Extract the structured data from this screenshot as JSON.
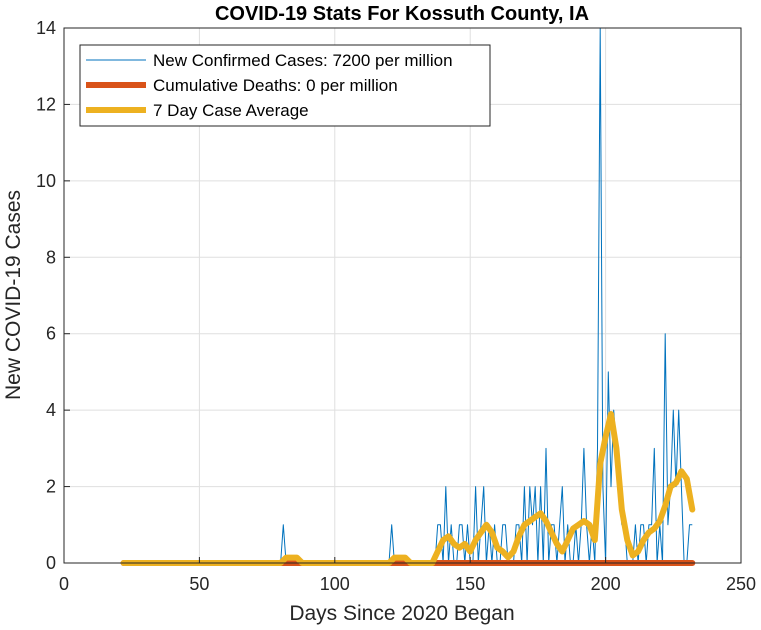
{
  "chart_data": {
    "type": "line",
    "title": "COVID-19 Stats For Kossuth County, IA",
    "xlabel": "Days Since 2020 Began",
    "ylabel": "New COVID-19 Cases",
    "xlim": [
      0,
      250
    ],
    "ylim": [
      0,
      14
    ],
    "xticks": [
      0,
      50,
      100,
      150,
      200,
      250
    ],
    "yticks": [
      0,
      2,
      4,
      6,
      8,
      10,
      12,
      14
    ],
    "grid": true,
    "legend_position": "top-left",
    "series": [
      {
        "name": "New Confirmed Cases: 7200 per million",
        "color": "#0072BD",
        "line_width": "thin",
        "x": [
          22,
          80,
          81,
          82,
          83,
          120,
          121,
          122,
          137,
          138,
          139,
          140,
          141,
          142,
          143,
          144,
          145,
          146,
          147,
          148,
          149,
          150,
          151,
          152,
          153,
          154,
          155,
          156,
          157,
          158,
          159,
          160,
          161,
          162,
          163,
          164,
          165,
          166,
          167,
          168,
          169,
          170,
          171,
          172,
          173,
          174,
          175,
          176,
          177,
          178,
          179,
          180,
          181,
          182,
          183,
          184,
          185,
          186,
          187,
          188,
          189,
          190,
          191,
          192,
          193,
          194,
          195,
          196,
          197,
          198,
          199,
          200,
          201,
          202,
          203,
          204,
          205,
          206,
          207,
          208,
          209,
          210,
          211,
          212,
          213,
          214,
          215,
          216,
          217,
          218,
          219,
          220,
          221,
          222,
          223,
          224,
          225,
          226,
          227,
          228,
          229,
          230,
          231,
          232
        ],
        "y": [
          0,
          0,
          1,
          0,
          0,
          0,
          1,
          0,
          0,
          1,
          1,
          0,
          2,
          0,
          1,
          0,
          0,
          1,
          1,
          0,
          1,
          0,
          0,
          2,
          0,
          1,
          2,
          0,
          1,
          0,
          1,
          0,
          0,
          1,
          1,
          0,
          0,
          0,
          1,
          1,
          0,
          2,
          0,
          2,
          1,
          2,
          0,
          2,
          0,
          3,
          0,
          1,
          1,
          0,
          1,
          2,
          0,
          1,
          0,
          0,
          1,
          0,
          1,
          3,
          1,
          0,
          1,
          0,
          3,
          14,
          2,
          0,
          5,
          2,
          4,
          3,
          2,
          1,
          1,
          0,
          0,
          0,
          1,
          0,
          1,
          1,
          0,
          1,
          1,
          3,
          0,
          1,
          0,
          6,
          1,
          2,
          4,
          2,
          4,
          2,
          0,
          0,
          1,
          1
        ]
      },
      {
        "name": "Cumulative Deaths: 0 per million",
        "color": "#D95319",
        "line_width": "thick",
        "x": [
          22,
          232
        ],
        "y": [
          0,
          0
        ]
      },
      {
        "name": "7 Day Case Average",
        "color": "#EDB120",
        "line_width": "thick",
        "x": [
          22,
          80,
          82,
          84,
          86,
          88,
          120,
          122,
          124,
          126,
          128,
          136,
          138,
          140,
          142,
          144,
          146,
          148,
          150,
          152,
          154,
          156,
          158,
          160,
          162,
          164,
          166,
          168,
          170,
          172,
          174,
          176,
          178,
          180,
          182,
          184,
          186,
          188,
          190,
          192,
          194,
          196,
          198,
          200,
          202,
          204,
          206,
          208,
          210,
          212,
          214,
          216,
          218,
          220,
          222,
          224,
          226,
          228,
          230,
          232
        ],
        "y": [
          0,
          0,
          0.14,
          0.14,
          0.14,
          0,
          0,
          0.14,
          0.14,
          0.14,
          0,
          0,
          0.3,
          0.6,
          0.7,
          0.5,
          0.4,
          0.5,
          0.3,
          0.6,
          0.8,
          1.0,
          0.8,
          0.4,
          0.3,
          0.15,
          0.3,
          0.7,
          1.0,
          1.1,
          1.2,
          1.3,
          1.1,
          0.8,
          0.5,
          0.3,
          0.6,
          0.9,
          1.0,
          1.1,
          1.0,
          0.6,
          2.6,
          3.3,
          3.9,
          3.0,
          1.4,
          0.6,
          0.2,
          0.3,
          0.6,
          0.8,
          0.9,
          1.1,
          1.5,
          2.0,
          2.1,
          2.4,
          2.2,
          1.4
        ]
      }
    ]
  }
}
